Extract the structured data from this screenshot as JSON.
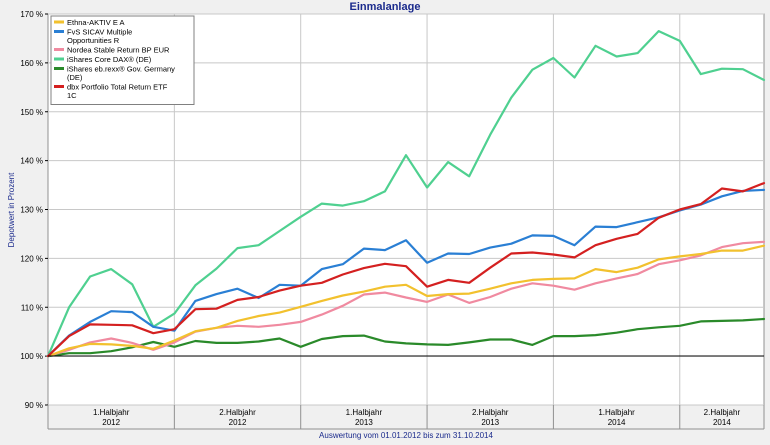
{
  "chart_data": {
    "type": "line",
    "title": "Einmalanlage",
    "ylabel": "Depotwert in Prozent",
    "footer": "Auswertung vom 01.01.2012 bis zum 31.10.2014",
    "ylim": [
      90,
      170
    ],
    "yticks": [
      {
        "v": 90,
        "label": "90 %"
      },
      {
        "v": 100,
        "label": "100 %"
      },
      {
        "v": 110,
        "label": "110 %"
      },
      {
        "v": 120,
        "label": "120 %"
      },
      {
        "v": 130,
        "label": "130 %"
      },
      {
        "v": 140,
        "label": "140 %"
      },
      {
        "v": 150,
        "label": "150 %"
      },
      {
        "v": 160,
        "label": "160 %"
      },
      {
        "v": 170,
        "label": "170 %"
      }
    ],
    "xlim": [
      0,
      34
    ],
    "x_periods": [
      {
        "start": 0,
        "end": 6,
        "label": "1.Halbjahr",
        "year": "2012"
      },
      {
        "start": 6,
        "end": 12,
        "label": "2.Halbjahr",
        "year": "2012"
      },
      {
        "start": 12,
        "end": 18,
        "label": "1.Halbjahr",
        "year": "2013"
      },
      {
        "start": 18,
        "end": 24,
        "label": "2.Halbjahr",
        "year": "2013"
      },
      {
        "start": 24,
        "end": 30,
        "label": "1.Halbjahr",
        "year": "2014"
      },
      {
        "start": 30,
        "end": 34,
        "label": "2.Halbjahr",
        "year": "2014"
      }
    ],
    "x": [
      0,
      1,
      2,
      3,
      4,
      5,
      6,
      7,
      8,
      9,
      10,
      11,
      12,
      13,
      14,
      15,
      16,
      17,
      18,
      19,
      20,
      21,
      22,
      23,
      24,
      25,
      26,
      27,
      28,
      29,
      30,
      31,
      32,
      33,
      34
    ],
    "series": [
      {
        "name": "Ethna-AKTIV E A",
        "color": "#f2c12e",
        "values": [
          100,
          101.6,
          102.5,
          102.4,
          102.1,
          101.5,
          103.2,
          105.1,
          105.8,
          107.2,
          108.2,
          108.9,
          110.1,
          111.3,
          112.4,
          113.2,
          114.2,
          114.6,
          112.3,
          112.7,
          112.8,
          113.8,
          114.9,
          115.6,
          115.8,
          115.9,
          117.8,
          117.2,
          118.1,
          119.8,
          120.4,
          120.9,
          121.6,
          121.6,
          122.6
        ]
      },
      {
        "name": "FvS SICAV Multiple Opportunities R",
        "color": "#2a7fd4",
        "values": [
          100,
          104.2,
          107.0,
          109.2,
          109.0,
          106.0,
          105.2,
          111.3,
          112.7,
          113.8,
          111.9,
          114.6,
          114.4,
          117.8,
          118.8,
          122.0,
          121.7,
          123.7,
          119.1,
          121.0,
          120.9,
          122.2,
          123.0,
          124.7,
          124.6,
          122.7,
          126.5,
          126.4,
          127.4,
          128.4,
          129.8,
          131.0,
          132.7,
          133.8,
          134.0
        ]
      },
      {
        "name": "Nordea Stable Return BP EUR",
        "color": "#f08aa0",
        "values": [
          100,
          101.3,
          102.8,
          103.6,
          102.7,
          101.3,
          102.8,
          105.0,
          105.8,
          106.2,
          106.0,
          106.4,
          107.0,
          108.5,
          110.3,
          112.6,
          113.0,
          112.0,
          111.1,
          112.6,
          110.9,
          112.1,
          113.8,
          114.9,
          114.4,
          113.6,
          114.9,
          115.9,
          116.8,
          118.8,
          119.6,
          120.6,
          122.3,
          123.1,
          123.4
        ]
      },
      {
        "name": "iShares Core DAX® (DE)",
        "color": "#4fd090",
        "values": [
          100,
          110.0,
          116.3,
          117.8,
          114.7,
          106.0,
          108.7,
          114.5,
          117.9,
          122.1,
          122.7,
          125.6,
          128.5,
          131.2,
          130.8,
          131.7,
          133.7,
          141.1,
          134.5,
          139.7,
          136.8,
          145.3,
          152.9,
          158.6,
          161.0,
          157.0,
          163.5,
          161.3,
          162.0,
          166.5,
          164.5,
          157.7,
          158.8,
          158.7,
          156.5
        ]
      },
      {
        "name": "iShares eb.rexx® Gov. Germany (DE)",
        "color": "#2a8a2a",
        "values": [
          100,
          100.6,
          100.6,
          101.0,
          101.8,
          102.9,
          101.9,
          103.1,
          102.7,
          102.7,
          103.0,
          103.6,
          101.9,
          103.5,
          104.1,
          104.2,
          103.0,
          102.6,
          102.4,
          102.3,
          102.8,
          103.4,
          103.4,
          102.3,
          104.1,
          104.1,
          104.3,
          104.8,
          105.5,
          105.9,
          106.2,
          107.1,
          107.2,
          107.3,
          107.6
        ]
      },
      {
        "name": "dbx Portfolio Total Return ETF 1C",
        "color": "#d42020",
        "values": [
          100,
          104.1,
          106.5,
          106.4,
          106.3,
          104.7,
          105.5,
          109.6,
          109.7,
          111.5,
          112.1,
          113.4,
          114.4,
          115.0,
          116.7,
          118.0,
          118.9,
          118.4,
          114.2,
          115.6,
          115.0,
          118.1,
          121.0,
          121.2,
          120.8,
          120.2,
          122.7,
          124.0,
          125.0,
          128.3,
          130.0,
          131.1,
          134.3,
          133.7,
          135.4
        ]
      }
    ]
  }
}
